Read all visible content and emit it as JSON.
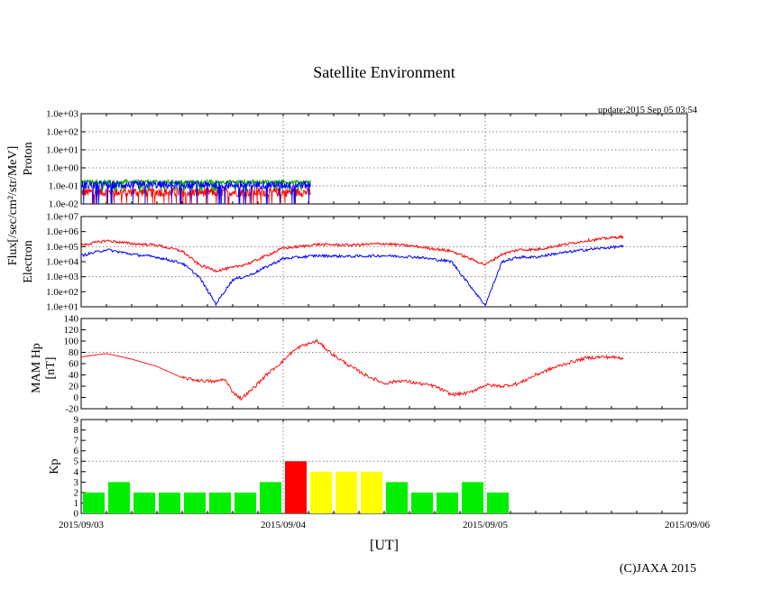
{
  "chart_data": {
    "type": "line",
    "title": "Satellite Environment",
    "update": "update:2015 Sep 05 03:54",
    "xlabel": "[UT]",
    "x_ticks": [
      "2015/09/03",
      "2015/09/04",
      "2015/09/05",
      "2015/09/06"
    ],
    "x_range_hours": [
      0,
      72
    ],
    "copyright": "(C)JAXA 2015",
    "shared_ylabel": "Flux[/sec/cm²/str/MeV]",
    "proton": {
      "label": "Proton",
      "scale": "log",
      "ylim": [
        -2,
        3
      ],
      "y_ticks": [
        "1.0e-02",
        "1.0e-01",
        "1.0e+00",
        "1.0e+01",
        "1.0e+02",
        "1.0e+03"
      ],
      "grid_decades": [
        -1,
        0,
        1,
        2
      ],
      "series": [
        {
          "name": "proton-low",
          "color": "#ff0000",
          "base": -1.35,
          "noise": 0.25,
          "spikes": -2.0
        },
        {
          "name": "proton-mid",
          "color": "#00a000",
          "base": -0.78,
          "noise": 0.12,
          "spikes": -1.3
        },
        {
          "name": "proton-high",
          "color": "#0000ff",
          "base": -0.95,
          "noise": 0.22,
          "spikes": -2.0
        }
      ],
      "x_end_hours": 27.3
    },
    "electron": {
      "label": "Electron",
      "scale": "log",
      "ylim": [
        1,
        7
      ],
      "y_ticks": [
        "1.0e+01",
        "1.0e+02",
        "1.0e+03",
        "1.0e+04",
        "1.0e+05",
        "1.0e+06",
        "1.0e+07"
      ],
      "grid_decades": [
        3,
        5
      ],
      "series": [
        {
          "name": "electron-red",
          "color": "#ff0000",
          "x": [
            0,
            3,
            6,
            9,
            12,
            14,
            16,
            18,
            20,
            24,
            26,
            28,
            32,
            36,
            40,
            44,
            48,
            50,
            52,
            54,
            56,
            60,
            64
          ],
          "y": [
            5.1,
            5.4,
            5.2,
            5.1,
            4.7,
            3.8,
            3.4,
            3.6,
            3.9,
            4.9,
            5.0,
            5.15,
            5.1,
            5.2,
            5.0,
            4.7,
            3.8,
            4.5,
            4.8,
            4.8,
            5.0,
            5.4,
            5.65
          ]
        },
        {
          "name": "electron-blue",
          "color": "#0000ff",
          "x": [
            0,
            3,
            6,
            9,
            12,
            14,
            16,
            18,
            20,
            24,
            26,
            28,
            32,
            36,
            40,
            44,
            48,
            50,
            52,
            54,
            56,
            60,
            64
          ],
          "y": [
            4.4,
            4.8,
            4.5,
            4.3,
            3.9,
            3.0,
            1.2,
            2.8,
            3.1,
            4.2,
            4.3,
            4.4,
            4.35,
            4.4,
            4.3,
            4.0,
            1.1,
            4.0,
            4.3,
            4.3,
            4.5,
            4.8,
            5.0
          ]
        }
      ],
      "x_end_hours": 64.5
    },
    "mam_hp": {
      "label": "MAM Hp",
      "unit": "[nT]",
      "ylim": [
        -20,
        140
      ],
      "y_ticks": [
        -20,
        0,
        20,
        40,
        60,
        80,
        100,
        120,
        140
      ],
      "grid_values": [
        80
      ],
      "series": [
        {
          "name": "hp",
          "color": "#ff0000",
          "x": [
            0,
            3,
            6,
            9,
            12,
            14,
            16,
            17,
            18,
            19,
            20,
            22,
            24,
            25,
            26,
            28,
            30,
            32,
            34,
            36,
            38,
            40,
            42,
            44,
            46,
            48,
            50,
            52,
            54,
            56,
            58,
            60,
            62,
            64.5
          ],
          "y": [
            72,
            78,
            68,
            55,
            35,
            30,
            28,
            33,
            10,
            -2,
            10,
            40,
            65,
            80,
            90,
            100,
            75,
            55,
            38,
            25,
            30,
            25,
            20,
            5,
            8,
            22,
            20,
            25,
            40,
            52,
            62,
            70,
            72,
            70
          ]
        }
      ]
    },
    "kp": {
      "label": "Kp",
      "ylim": [
        0,
        9
      ],
      "y_ticks": [
        0,
        1,
        2,
        3,
        4,
        5,
        6,
        7,
        8,
        9
      ],
      "grid_values": [
        5
      ],
      "interval_hours": 3,
      "values": [
        2,
        3,
        2,
        2,
        2,
        2,
        2,
        3,
        5,
        4,
        4,
        4,
        3,
        2,
        2,
        3,
        2
      ],
      "color_thresholds": [
        {
          "max": 3,
          "color": "#00ee00"
        },
        {
          "max": 4,
          "color": "#ffff00"
        },
        {
          "max": 9,
          "color": "#ff0000"
        }
      ]
    }
  }
}
